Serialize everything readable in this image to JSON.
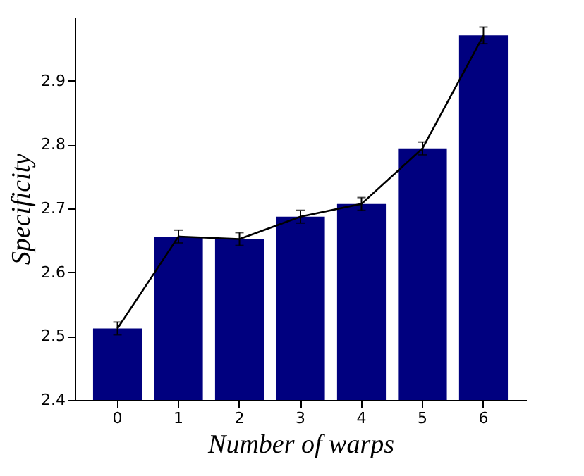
{
  "chart_data": {
    "type": "bar",
    "xlabel": "Number of warps",
    "ylabel": "Specificity",
    "categories": [
      "0",
      "1",
      "2",
      "3",
      "4",
      "5",
      "6"
    ],
    "series": [
      {
        "color": "#00007f",
        "values": [
          2.512,
          2.656,
          2.652,
          2.687,
          2.707,
          2.794,
          2.971
        ],
        "errors": [
          0.01,
          0.01,
          0.01,
          0.01,
          0.01,
          0.01,
          0.013
        ]
      },
      {
        "type": "line",
        "color": "#000000",
        "values": [
          2.512,
          2.656,
          2.652,
          2.687,
          2.707,
          2.794,
          2.971
        ]
      }
    ],
    "ylim": [
      2.4,
      3.0
    ],
    "yticks": [
      2.4,
      2.5,
      2.6,
      2.7,
      2.8,
      2.9
    ],
    "grid": false,
    "legend": false
  }
}
